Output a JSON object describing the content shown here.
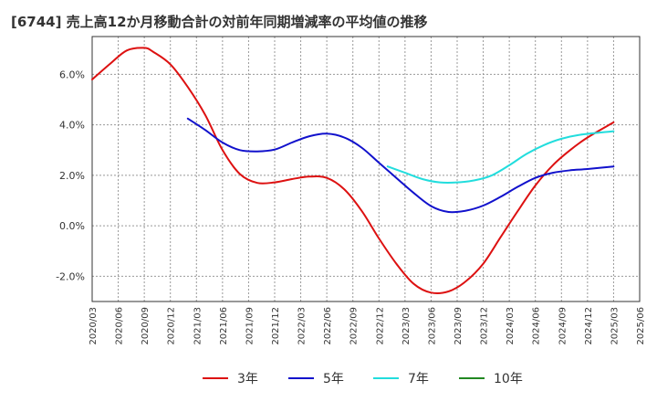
{
  "title": "[6744]  売上高12か月移動合計の対前年同期増減率の平均値の推移",
  "chart_data": {
    "type": "line",
    "ylim": [
      -3.0,
      7.5
    ],
    "yticks": [
      -2.0,
      0.0,
      2.0,
      4.0,
      6.0
    ],
    "ytick_labels": [
      "-2.0%",
      "0.0%",
      "2.0%",
      "4.0%",
      "6.0%"
    ],
    "xlim": [
      "2020/03",
      "2025/06"
    ],
    "xtick_labels": [
      "2020/03",
      "2020/06",
      "2020/09",
      "2020/12",
      "2021/03",
      "2021/06",
      "2021/09",
      "2021/12",
      "2022/03",
      "2022/06",
      "2022/09",
      "2022/12",
      "2023/03",
      "2023/06",
      "2023/09",
      "2023/12",
      "2024/03",
      "2024/06",
      "2024/09",
      "2024/12",
      "2025/03",
      "2025/06"
    ],
    "grid": true,
    "legend_position": "bottom",
    "series": [
      {
        "name": "3年",
        "color": "#dd1111",
        "x": [
          "2020/03",
          "2020/05",
          "2020/07",
          "2020/09",
          "2020/10",
          "2020/12",
          "2021/02",
          "2021/04",
          "2021/06",
          "2021/08",
          "2021/10",
          "2021/12",
          "2022/02",
          "2022/04",
          "2022/06",
          "2022/08",
          "2022/10",
          "2022/12",
          "2023/02",
          "2023/04",
          "2023/06",
          "2023/08",
          "2023/10",
          "2023/12",
          "2024/02",
          "2024/04",
          "2024/06",
          "2024/08",
          "2024/10",
          "2024/12",
          "2025/03"
        ],
        "values": [
          5.8,
          6.4,
          6.95,
          7.05,
          6.9,
          6.4,
          5.5,
          4.4,
          3.0,
          2.05,
          1.7,
          1.72,
          1.85,
          1.95,
          1.9,
          1.45,
          0.6,
          -0.5,
          -1.5,
          -2.3,
          -2.65,
          -2.6,
          -2.2,
          -1.5,
          -0.45,
          0.6,
          1.6,
          2.4,
          3.0,
          3.5,
          4.1
        ]
      },
      {
        "name": "5年",
        "color": "#1111cc",
        "x": [
          "2021/02",
          "2021/04",
          "2021/06",
          "2021/08",
          "2021/10",
          "2021/12",
          "2022/02",
          "2022/04",
          "2022/06",
          "2022/08",
          "2022/10",
          "2022/12",
          "2023/02",
          "2023/04",
          "2023/06",
          "2023/08",
          "2023/10",
          "2023/12",
          "2024/02",
          "2024/04",
          "2024/06",
          "2024/08",
          "2024/10",
          "2024/12",
          "2025/03"
        ],
        "values": [
          4.25,
          3.8,
          3.3,
          3.0,
          2.95,
          3.02,
          3.3,
          3.55,
          3.65,
          3.5,
          3.1,
          2.5,
          1.9,
          1.3,
          0.78,
          0.55,
          0.6,
          0.8,
          1.15,
          1.55,
          1.9,
          2.1,
          2.2,
          2.25,
          2.35
        ]
      },
      {
        "name": "7年",
        "color": "#22dddd",
        "x": [
          "2023/01",
          "2023/03",
          "2023/05",
          "2023/07",
          "2023/09",
          "2023/11",
          "2024/01",
          "2024/03",
          "2024/05",
          "2024/07",
          "2024/09",
          "2024/11",
          "2025/03"
        ],
        "values": [
          2.35,
          2.1,
          1.85,
          1.72,
          1.72,
          1.8,
          2.0,
          2.4,
          2.85,
          3.2,
          3.45,
          3.6,
          3.75
        ]
      },
      {
        "name": "10年",
        "color": "#228822",
        "x": [],
        "values": []
      }
    ]
  }
}
